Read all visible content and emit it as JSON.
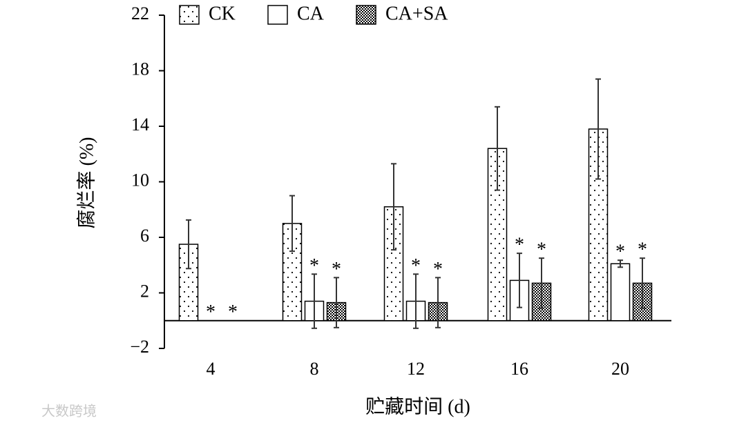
{
  "chart_data": {
    "type": "bar",
    "x_label": "贮藏时间 (d)",
    "y_label": "腐烂率 (%)",
    "categories": [
      "4",
      "8",
      "12",
      "16",
      "20"
    ],
    "series": [
      {
        "name": "CK",
        "color": "#000000",
        "pattern": "sparse-dots",
        "values": [
          5.5,
          7.0,
          8.2,
          12.4,
          13.8
        ],
        "errors": [
          1.75,
          2.0,
          3.1,
          3.0,
          3.6
        ],
        "markers": [
          null,
          null,
          null,
          null,
          null
        ]
      },
      {
        "name": "CA",
        "color": "#000000",
        "pattern": "none",
        "values": [
          0,
          1.4,
          1.4,
          2.9,
          4.1
        ],
        "errors": [
          0,
          1.95,
          1.95,
          1.95,
          0.25
        ],
        "markers": [
          "*",
          "*",
          "*",
          "*",
          "*"
        ]
      },
      {
        "name": "CA+SA",
        "color": "#000000",
        "pattern": "dense-dots",
        "values": [
          0,
          1.3,
          1.3,
          2.7,
          2.7
        ],
        "errors": [
          0,
          1.8,
          1.8,
          1.8,
          1.8
        ],
        "markers": [
          "*",
          "*",
          "*",
          "*",
          "*"
        ]
      }
    ],
    "ylim": [
      -2,
      22
    ],
    "yticks": [
      {
        "value": -2,
        "label": "−2"
      },
      2,
      6,
      10,
      14,
      18,
      22
    ],
    "legend": "top",
    "watermark": "大数跨境"
  }
}
